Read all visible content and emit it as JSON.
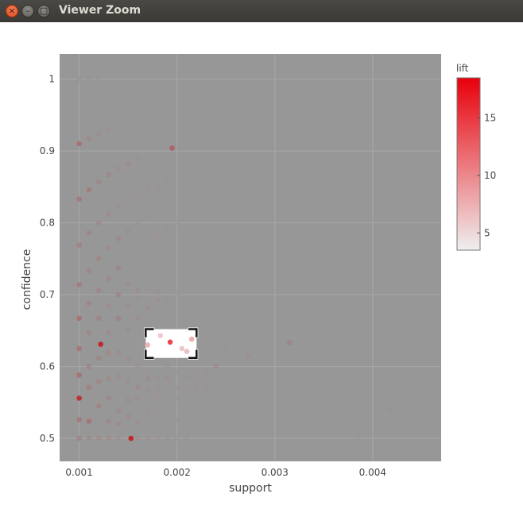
{
  "window": {
    "title": "Viewer Zoom",
    "close_icon": "close-icon",
    "minimize_icon": "minimize-icon",
    "maximize_icon": "maximize-icon"
  },
  "chart_data": {
    "type": "scatter",
    "title": "",
    "xlabel": "support",
    "ylabel": "confidence",
    "xlim": [
      0.0008,
      0.0047
    ],
    "ylim": [
      0.468,
      1.035
    ],
    "xticks": [
      {
        "value": 0.001,
        "label": "0.001"
      },
      {
        "value": 0.002,
        "label": "0.002"
      },
      {
        "value": 0.003,
        "label": "0.003"
      },
      {
        "value": 0.004,
        "label": "0.004"
      }
    ],
    "yticks": [
      {
        "value": 0.5,
        "label": "0.5"
      },
      {
        "value": 0.6,
        "label": "0.6"
      },
      {
        "value": 0.7,
        "label": "0.7"
      },
      {
        "value": 0.8,
        "label": "0.8"
      },
      {
        "value": 0.9,
        "label": "0.9"
      },
      {
        "value": 1.0,
        "label": "1"
      }
    ],
    "grid": true,
    "colorbar": {
      "title": "lift",
      "min": 3.5,
      "max": 18.5,
      "ticks": [
        {
          "value": 5,
          "label": "5"
        },
        {
          "value": 10,
          "label": "10"
        },
        {
          "value": 15,
          "label": "15"
        }
      ],
      "low_color": "#efefef",
      "high_color": "#e8000b"
    },
    "zoom_box": {
      "x0": 0.00168,
      "x1": 0.0022,
      "y0": 0.612,
      "y1": 0.652
    },
    "colors": {
      "plot_background": "#979797",
      "grid": "#a8a8a8",
      "point_low": "#9a9a9a",
      "point_high": "#c4161a"
    },
    "points": [
      {
        "x": 0.001,
        "y": 1.0,
        "lift": 4.5
      },
      {
        "x": 0.0011,
        "y": 1.0,
        "lift": 4.5
      },
      {
        "x": 0.0012,
        "y": 1.0,
        "lift": 4.2
      },
      {
        "x": 0.001,
        "y": 0.91,
        "lift": 9.5
      },
      {
        "x": 0.0011,
        "y": 0.917,
        "lift": 5.6
      },
      {
        "x": 0.0012,
        "y": 0.923,
        "lift": 5.2
      },
      {
        "x": 0.0013,
        "y": 0.929,
        "lift": 5.0
      },
      {
        "x": 0.0014,
        "y": 0.933,
        "lift": 4.6
      },
      {
        "x": 0.001,
        "y": 0.833,
        "lift": 8.3
      },
      {
        "x": 0.0011,
        "y": 0.846,
        "lift": 7.8
      },
      {
        "x": 0.0012,
        "y": 0.857,
        "lift": 6.2
      },
      {
        "x": 0.0013,
        "y": 0.867,
        "lift": 6.6
      },
      {
        "x": 0.0014,
        "y": 0.875,
        "lift": 5.3
      },
      {
        "x": 0.0015,
        "y": 0.882,
        "lift": 5.6
      },
      {
        "x": 0.0016,
        "y": 0.889,
        "lift": 4.8
      },
      {
        "x": 0.0017,
        "y": 0.889,
        "lift": 4.4
      },
      {
        "x": 0.00195,
        "y": 0.904,
        "lift": 11.2
      },
      {
        "x": 0.0019,
        "y": 0.857,
        "lift": 4.5
      },
      {
        "x": 0.0018,
        "y": 0.85,
        "lift": 4.8
      },
      {
        "x": 0.001,
        "y": 0.769,
        "lift": 7.2
      },
      {
        "x": 0.0011,
        "y": 0.786,
        "lift": 7.0
      },
      {
        "x": 0.0012,
        "y": 0.8,
        "lift": 6.0
      },
      {
        "x": 0.0013,
        "y": 0.813,
        "lift": 5.5
      },
      {
        "x": 0.0014,
        "y": 0.824,
        "lift": 5.0
      },
      {
        "x": 0.0015,
        "y": 0.833,
        "lift": 4.8
      },
      {
        "x": 0.0016,
        "y": 0.842,
        "lift": 4.6
      },
      {
        "x": 0.0017,
        "y": 0.85,
        "lift": 4.3
      },
      {
        "x": 0.0019,
        "y": 0.826,
        "lift": 4.4
      },
      {
        "x": 0.002,
        "y": 0.8,
        "lift": 4.2
      },
      {
        "x": 0.0019,
        "y": 0.792,
        "lift": 4.3
      },
      {
        "x": 0.0018,
        "y": 0.783,
        "lift": 4.6
      },
      {
        "x": 0.0017,
        "y": 0.81,
        "lift": 4.4
      },
      {
        "x": 0.0016,
        "y": 0.8,
        "lift": 4.6
      },
      {
        "x": 0.0015,
        "y": 0.789,
        "lift": 5.0
      },
      {
        "x": 0.0014,
        "y": 0.778,
        "lift": 6.0
      },
      {
        "x": 0.0013,
        "y": 0.765,
        "lift": 5.6
      },
      {
        "x": 0.0031,
        "y": 0.885,
        "lift": 4.1
      },
      {
        "x": 0.00445,
        "y": 0.786,
        "lift": 4.1
      },
      {
        "x": 0.001,
        "y": 0.714,
        "lift": 8.0
      },
      {
        "x": 0.0011,
        "y": 0.733,
        "lift": 6.5
      },
      {
        "x": 0.0012,
        "y": 0.75,
        "lift": 6.5
      },
      {
        "x": 0.0013,
        "y": 0.722,
        "lift": 6.0
      },
      {
        "x": 0.0014,
        "y": 0.737,
        "lift": 6.3
      },
      {
        "x": 0.0015,
        "y": 0.714,
        "lift": 5.5
      },
      {
        "x": 0.0016,
        "y": 0.706,
        "lift": 5.3
      },
      {
        "x": 0.0017,
        "y": 0.708,
        "lift": 4.6
      },
      {
        "x": 0.0018,
        "y": 0.704,
        "lift": 4.5
      },
      {
        "x": 0.002,
        "y": 0.703,
        "lift": 4.3
      },
      {
        "x": 0.0023,
        "y": 0.696,
        "lift": 4.2
      },
      {
        "x": 0.001,
        "y": 0.667,
        "lift": 9.5
      },
      {
        "x": 0.0011,
        "y": 0.688,
        "lift": 7.0
      },
      {
        "x": 0.0012,
        "y": 0.706,
        "lift": 6.4
      },
      {
        "x": 0.0013,
        "y": 0.684,
        "lift": 5.5
      },
      {
        "x": 0.0014,
        "y": 0.7,
        "lift": 6.7
      },
      {
        "x": 0.0015,
        "y": 0.684,
        "lift": 5.3
      },
      {
        "x": 0.0016,
        "y": 0.696,
        "lift": 4.7
      },
      {
        "x": 0.0017,
        "y": 0.682,
        "lift": 5.2
      },
      {
        "x": 0.0018,
        "y": 0.693,
        "lift": 5.0
      },
      {
        "x": 0.0019,
        "y": 0.689,
        "lift": 4.5
      },
      {
        "x": 0.001,
        "y": 0.625,
        "lift": 9.0
      },
      {
        "x": 0.0011,
        "y": 0.647,
        "lift": 6.5
      },
      {
        "x": 0.0012,
        "y": 0.667,
        "lift": 6.8
      },
      {
        "x": 0.0013,
        "y": 0.647,
        "lift": 5.7
      },
      {
        "x": 0.0014,
        "y": 0.667,
        "lift": 7.0
      },
      {
        "x": 0.0015,
        "y": 0.652,
        "lift": 5.5
      },
      {
        "x": 0.0016,
        "y": 0.667,
        "lift": 5.3
      },
      {
        "x": 0.0017,
        "y": 0.655,
        "lift": 5.0
      },
      {
        "x": 0.00122,
        "y": 0.631,
        "lift": 17.0
      },
      {
        "x": 0.0017,
        "y": 0.63,
        "lift": 7.0
      },
      {
        "x": 0.00183,
        "y": 0.643,
        "lift": 4.6
      },
      {
        "x": 0.00193,
        "y": 0.634,
        "lift": 14.0
      },
      {
        "x": 0.00205,
        "y": 0.625,
        "lift": 6.0
      },
      {
        "x": 0.00215,
        "y": 0.638,
        "lift": 7.5
      },
      {
        "x": 0.0021,
        "y": 0.621,
        "lift": 6.5
      },
      {
        "x": 0.0025,
        "y": 0.625,
        "lift": 4.5
      },
      {
        "x": 0.00273,
        "y": 0.615,
        "lift": 5.0
      },
      {
        "x": 0.00315,
        "y": 0.633,
        "lift": 7.0
      },
      {
        "x": 0.00397,
        "y": 0.61,
        "lift": 4.3
      },
      {
        "x": 0.001,
        "y": 0.588,
        "lift": 9.5
      },
      {
        "x": 0.0011,
        "y": 0.6,
        "lift": 7.0
      },
      {
        "x": 0.0012,
        "y": 0.611,
        "lift": 6.3
      },
      {
        "x": 0.0013,
        "y": 0.619,
        "lift": 5.8
      },
      {
        "x": 0.0014,
        "y": 0.619,
        "lift": 5.5
      },
      {
        "x": 0.0015,
        "y": 0.61,
        "lift": 5.2
      },
      {
        "x": 0.0016,
        "y": 0.6,
        "lift": 4.8
      },
      {
        "x": 0.0017,
        "y": 0.591,
        "lift": 4.6
      },
      {
        "x": 0.0018,
        "y": 0.583,
        "lift": 4.8
      },
      {
        "x": 0.0019,
        "y": 0.6,
        "lift": 4.7
      },
      {
        "x": 0.002,
        "y": 0.593,
        "lift": 4.4
      },
      {
        "x": 0.0021,
        "y": 0.586,
        "lift": 4.5
      },
      {
        "x": 0.0022,
        "y": 0.594,
        "lift": 4.4
      },
      {
        "x": 0.0023,
        "y": 0.59,
        "lift": 4.3
      },
      {
        "x": 0.0024,
        "y": 0.6,
        "lift": 6.0
      },
      {
        "x": 0.001,
        "y": 0.556,
        "lift": 16.0
      },
      {
        "x": 0.0011,
        "y": 0.571,
        "lift": 7.5
      },
      {
        "x": 0.0012,
        "y": 0.579,
        "lift": 6.5
      },
      {
        "x": 0.0013,
        "y": 0.583,
        "lift": 5.8
      },
      {
        "x": 0.0014,
        "y": 0.586,
        "lift": 5.2
      },
      {
        "x": 0.0015,
        "y": 0.579,
        "lift": 5.0
      },
      {
        "x": 0.0016,
        "y": 0.571,
        "lift": 5.8
      },
      {
        "x": 0.0017,
        "y": 0.583,
        "lift": 5.4
      },
      {
        "x": 0.0018,
        "y": 0.571,
        "lift": 4.7
      },
      {
        "x": 0.0019,
        "y": 0.583,
        "lift": 5.0
      },
      {
        "x": 0.002,
        "y": 0.571,
        "lift": 4.8
      },
      {
        "x": 0.0021,
        "y": 0.568,
        "lift": 4.6
      },
      {
        "x": 0.0022,
        "y": 0.565,
        "lift": 4.5
      },
      {
        "x": 0.0023,
        "y": 0.581,
        "lift": 4.4
      },
      {
        "x": 0.00225,
        "y": 0.58,
        "lift": 4.3
      },
      {
        "x": 0.001,
        "y": 0.526,
        "lift": 8.5
      },
      {
        "x": 0.0011,
        "y": 0.524,
        "lift": 9.0
      },
      {
        "x": 0.0012,
        "y": 0.545,
        "lift": 7.0
      },
      {
        "x": 0.0013,
        "y": 0.556,
        "lift": 6.5
      },
      {
        "x": 0.0014,
        "y": 0.538,
        "lift": 6.0
      },
      {
        "x": 0.0015,
        "y": 0.553,
        "lift": 5.3
      },
      {
        "x": 0.0016,
        "y": 0.556,
        "lift": 5.0
      },
      {
        "x": 0.0017,
        "y": 0.567,
        "lift": 4.8
      },
      {
        "x": 0.0018,
        "y": 0.557,
        "lift": 4.6
      },
      {
        "x": 0.0019,
        "y": 0.565,
        "lift": 4.5
      },
      {
        "x": 0.002,
        "y": 0.556,
        "lift": 4.4
      },
      {
        "x": 0.0022,
        "y": 0.575,
        "lift": 4.3
      },
      {
        "x": 0.0023,
        "y": 0.571,
        "lift": 4.3
      },
      {
        "x": 0.00255,
        "y": 0.556,
        "lift": 4.2
      },
      {
        "x": 0.0013,
        "y": 0.524,
        "lift": 6.0
      },
      {
        "x": 0.0014,
        "y": 0.52,
        "lift": 5.8
      },
      {
        "x": 0.0015,
        "y": 0.531,
        "lift": 5.5
      },
      {
        "x": 0.0016,
        "y": 0.522,
        "lift": 5.0
      },
      {
        "x": 0.0017,
        "y": 0.538,
        "lift": 4.8
      },
      {
        "x": 0.0018,
        "y": 0.53,
        "lift": 4.6
      },
      {
        "x": 0.0019,
        "y": 0.516,
        "lift": 4.4
      },
      {
        "x": 0.002,
        "y": 0.525,
        "lift": 4.3
      },
      {
        "x": 0.0021,
        "y": 0.515,
        "lift": 4.2
      },
      {
        "x": 0.0023,
        "y": 0.535,
        "lift": 4.2
      },
      {
        "x": 0.0024,
        "y": 0.534,
        "lift": 4.2
      },
      {
        "x": 0.0024,
        "y": 0.519,
        "lift": 4.2
      },
      {
        "x": 0.0024,
        "y": 0.51,
        "lift": 4.2
      },
      {
        "x": 0.00265,
        "y": 0.521,
        "lift": 4.1
      },
      {
        "x": 0.00295,
        "y": 0.527,
        "lift": 4.1
      },
      {
        "x": 0.00295,
        "y": 0.51,
        "lift": 4.1
      },
      {
        "x": 0.00315,
        "y": 0.545,
        "lift": 4.1
      },
      {
        "x": 0.00418,
        "y": 0.54,
        "lift": 4.3
      },
      {
        "x": 0.00385,
        "y": 0.5,
        "lift": 4.1
      },
      {
        "x": 0.001,
        "y": 0.5,
        "lift": 7.0
      },
      {
        "x": 0.0011,
        "y": 0.5,
        "lift": 6.0
      },
      {
        "x": 0.0012,
        "y": 0.5,
        "lift": 5.7
      },
      {
        "x": 0.0013,
        "y": 0.5,
        "lift": 5.4
      },
      {
        "x": 0.0014,
        "y": 0.5,
        "lift": 5.1
      },
      {
        "x": 0.00153,
        "y": 0.5,
        "lift": 17.0
      },
      {
        "x": 0.0016,
        "y": 0.5,
        "lift": 5.0
      },
      {
        "x": 0.0017,
        "y": 0.5,
        "lift": 4.8
      },
      {
        "x": 0.0018,
        "y": 0.5,
        "lift": 4.6
      },
      {
        "x": 0.0019,
        "y": 0.5,
        "lift": 4.5
      },
      {
        "x": 0.002,
        "y": 0.5,
        "lift": 4.4
      },
      {
        "x": 0.0021,
        "y": 0.5,
        "lift": 4.3
      }
    ]
  }
}
